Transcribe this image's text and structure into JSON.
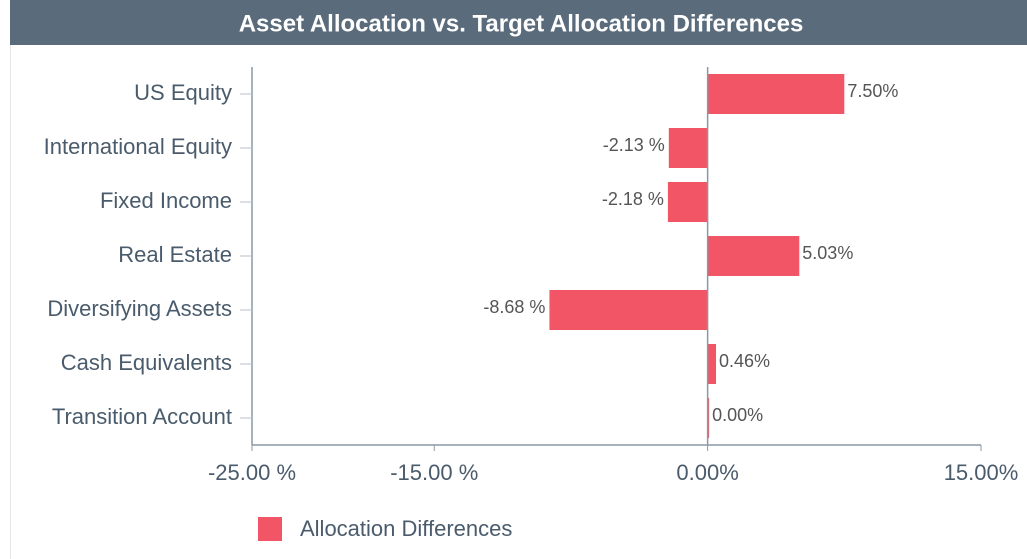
{
  "chart_data": {
    "type": "hbar",
    "title": "Asset Allocation vs. Target Allocation Differences",
    "categories": [
      "US Equity",
      "International Equity",
      "Fixed Income",
      "Real Estate",
      "Diversifying Assets",
      "Cash Equivalents",
      "Transition Account"
    ],
    "series": [
      {
        "name": "Allocation Differences",
        "color": "#f25565",
        "values": [
          7.5,
          -2.13,
          -2.18,
          5.03,
          -8.68,
          0.46,
          0.0
        ],
        "value_labels": [
          "7.50%",
          "-2.13 %",
          "-2.18 %",
          "5.03%",
          "-8.68 %",
          "0.46%",
          "0.00%"
        ]
      }
    ],
    "xlim": [
      -25,
      15
    ],
    "xticks": [
      {
        "value": -25,
        "label": "-25.00 %"
      },
      {
        "value": -15,
        "label": "-15.00 %"
      },
      {
        "value": 0,
        "label": "0.00%"
      },
      {
        "value": 15,
        "label": "15.00%"
      }
    ]
  }
}
